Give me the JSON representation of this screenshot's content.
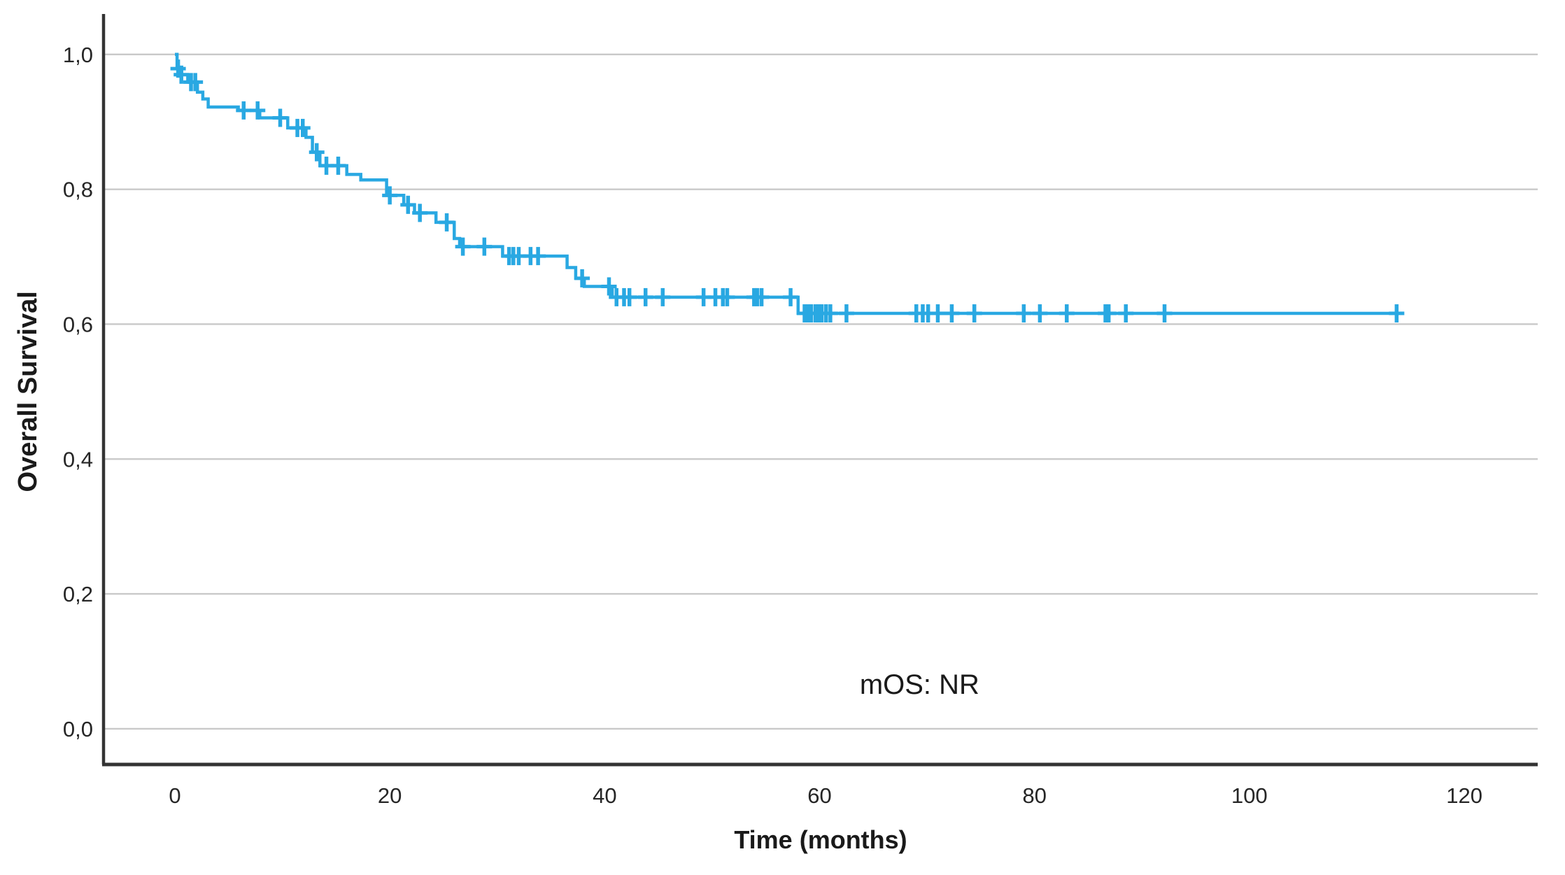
{
  "figure": {
    "background_color": "#ffffff",
    "kind": "Kaplan-Meier overall survival curve"
  },
  "chart_data": {
    "type": "line",
    "subtype": "kaplan-meier-step",
    "title": "",
    "xlabel": "Time (months)",
    "ylabel": "Overall Survival",
    "x_ticks": [
      0,
      20,
      40,
      60,
      80,
      100,
      120
    ],
    "x_tick_labels": [
      "0",
      "20",
      "40",
      "60",
      "80",
      "100",
      "120"
    ],
    "y_ticks": [
      0.0,
      0.2,
      0.4,
      0.6,
      0.8,
      1.0
    ],
    "y_tick_labels": [
      "0,0",
      "0,2",
      "0,4",
      "0,6",
      "0,8",
      "1,0"
    ],
    "xlim": [
      -6.64,
      126.83
    ],
    "ylim": [
      -0.053,
      1.06
    ],
    "grid": "horizontal",
    "legend": "none",
    "annotation": {
      "text": "mOS: NR",
      "x": 69.3,
      "y": 0.065
    },
    "colors": {
      "curve": "#29a8e2",
      "grid": "#c9c9c9",
      "axis": "#333333",
      "tick_text": "#262626",
      "title_text": "#1a1a1a"
    },
    "series": [
      {
        "name": "Overall Survival",
        "color": "#29a8e2",
        "median": "NR",
        "steps": [
          [
            0.0,
            1.0
          ],
          [
            0.2,
            0.979
          ],
          [
            0.4,
            0.97
          ],
          [
            1.2,
            0.959
          ],
          [
            2.1,
            0.944
          ],
          [
            2.6,
            0.934
          ],
          [
            3.1,
            0.922
          ],
          [
            5.9,
            0.917
          ],
          [
            7.9,
            0.906
          ],
          [
            10.5,
            0.891
          ],
          [
            12.2,
            0.877
          ],
          [
            12.8,
            0.855
          ],
          [
            13.5,
            0.835
          ],
          [
            16.0,
            0.822
          ],
          [
            17.3,
            0.814
          ],
          [
            19.7,
            0.791
          ],
          [
            21.3,
            0.777
          ],
          [
            22.3,
            0.765
          ],
          [
            24.3,
            0.751
          ],
          [
            26.0,
            0.727
          ],
          [
            26.5,
            0.715
          ],
          [
            30.5,
            0.701
          ],
          [
            36.5,
            0.684
          ],
          [
            37.3,
            0.668
          ],
          [
            38.1,
            0.656
          ],
          [
            40.7,
            0.64
          ],
          [
            58.0,
            0.616
          ]
        ],
        "end_time": 113.8,
        "censor_marks": [
          [
            0.3,
            0.979
          ],
          [
            0.6,
            0.97
          ],
          [
            1.5,
            0.959
          ],
          [
            1.9,
            0.959
          ],
          [
            6.4,
            0.917
          ],
          [
            7.7,
            0.917
          ],
          [
            9.8,
            0.906
          ],
          [
            11.4,
            0.891
          ],
          [
            11.9,
            0.891
          ],
          [
            13.2,
            0.855
          ],
          [
            14.1,
            0.835
          ],
          [
            15.2,
            0.835
          ],
          [
            20.0,
            0.791
          ],
          [
            21.7,
            0.777
          ],
          [
            22.8,
            0.765
          ],
          [
            25.3,
            0.751
          ],
          [
            26.8,
            0.715
          ],
          [
            28.8,
            0.715
          ],
          [
            31.1,
            0.701
          ],
          [
            31.5,
            0.701
          ],
          [
            32.0,
            0.701
          ],
          [
            33.1,
            0.701
          ],
          [
            33.8,
            0.701
          ],
          [
            37.9,
            0.668
          ],
          [
            40.4,
            0.656
          ],
          [
            41.1,
            0.64
          ],
          [
            41.8,
            0.64
          ],
          [
            42.3,
            0.64
          ],
          [
            43.8,
            0.64
          ],
          [
            45.4,
            0.64
          ],
          [
            49.2,
            0.64
          ],
          [
            50.3,
            0.64
          ],
          [
            51.0,
            0.64
          ],
          [
            51.4,
            0.64
          ],
          [
            53.9,
            0.64
          ],
          [
            54.2,
            0.64
          ],
          [
            54.6,
            0.64
          ],
          [
            57.3,
            0.64
          ],
          [
            58.6,
            0.616
          ],
          [
            58.9,
            0.616
          ],
          [
            59.2,
            0.616
          ],
          [
            59.6,
            0.616
          ],
          [
            59.9,
            0.616
          ],
          [
            60.2,
            0.616
          ],
          [
            60.6,
            0.616
          ],
          [
            61.0,
            0.616
          ],
          [
            62.5,
            0.616
          ],
          [
            69.0,
            0.616
          ],
          [
            69.6,
            0.616
          ],
          [
            70.1,
            0.616
          ],
          [
            71.0,
            0.616
          ],
          [
            72.3,
            0.616
          ],
          [
            74.4,
            0.616
          ],
          [
            79.0,
            0.616
          ],
          [
            80.5,
            0.616
          ],
          [
            83.0,
            0.616
          ],
          [
            86.6,
            0.616
          ],
          [
            86.9,
            0.616
          ],
          [
            88.5,
            0.616
          ],
          [
            92.1,
            0.616
          ],
          [
            113.7,
            0.616
          ]
        ]
      }
    ]
  }
}
